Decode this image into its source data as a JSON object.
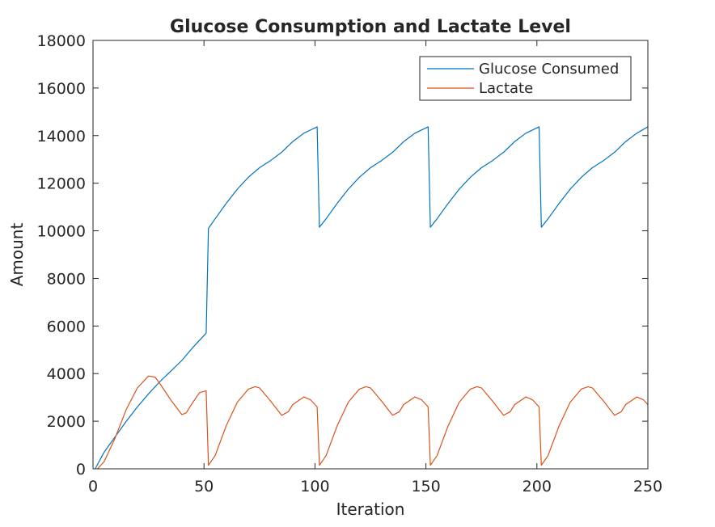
{
  "chart_data": {
    "type": "line",
    "title": "Glucose Consumption and Lactate Level",
    "xlabel": "Iteration",
    "ylabel": "Amount",
    "xlim": [
      0,
      250
    ],
    "ylim": [
      0,
      18000
    ],
    "xticks": [
      0,
      50,
      100,
      150,
      200,
      250
    ],
    "yticks": [
      0,
      2000,
      4000,
      6000,
      8000,
      10000,
      12000,
      14000,
      16000,
      18000
    ],
    "grid": false,
    "legend_location": "top-right",
    "series": [
      {
        "name": "Glucose Consumed",
        "color": "#0072BD",
        "points": [
          [
            1,
            0
          ],
          [
            5,
            700
          ],
          [
            10,
            1350
          ],
          [
            15,
            2000
          ],
          [
            20,
            2600
          ],
          [
            25,
            3150
          ],
          [
            30,
            3650
          ],
          [
            35,
            4100
          ],
          [
            40,
            4550
          ],
          [
            45,
            5100
          ],
          [
            51,
            5700
          ],
          [
            52,
            10100
          ],
          [
            55,
            10500
          ],
          [
            60,
            11150
          ],
          [
            65,
            11750
          ],
          [
            70,
            12250
          ],
          [
            75,
            12650
          ],
          [
            80,
            12950
          ],
          [
            85,
            13300
          ],
          [
            90,
            13750
          ],
          [
            95,
            14100
          ],
          [
            101,
            14370
          ],
          [
            102,
            10150
          ],
          [
            105,
            10500
          ],
          [
            110,
            11150
          ],
          [
            115,
            11750
          ],
          [
            120,
            12250
          ],
          [
            125,
            12650
          ],
          [
            130,
            12950
          ],
          [
            135,
            13300
          ],
          [
            140,
            13750
          ],
          [
            145,
            14100
          ],
          [
            151,
            14370
          ],
          [
            152,
            10150
          ],
          [
            155,
            10500
          ],
          [
            160,
            11150
          ],
          [
            165,
            11750
          ],
          [
            170,
            12250
          ],
          [
            175,
            12650
          ],
          [
            180,
            12950
          ],
          [
            185,
            13300
          ],
          [
            190,
            13750
          ],
          [
            195,
            14100
          ],
          [
            201,
            14370
          ],
          [
            202,
            10150
          ],
          [
            205,
            10500
          ],
          [
            210,
            11150
          ],
          [
            215,
            11750
          ],
          [
            220,
            12250
          ],
          [
            225,
            12650
          ],
          [
            230,
            12950
          ],
          [
            235,
            13300
          ],
          [
            240,
            13750
          ],
          [
            245,
            14100
          ],
          [
            250,
            14370
          ]
        ]
      },
      {
        "name": "Lactate",
        "color": "#D95319",
        "points": [
          [
            2,
            0
          ],
          [
            5,
            300
          ],
          [
            10,
            1300
          ],
          [
            15,
            2500
          ],
          [
            20,
            3400
          ],
          [
            25,
            3900
          ],
          [
            28,
            3850
          ],
          [
            30,
            3600
          ],
          [
            35,
            2900
          ],
          [
            40,
            2280
          ],
          [
            42,
            2350
          ],
          [
            45,
            2800
          ],
          [
            48,
            3200
          ],
          [
            51,
            3280
          ],
          [
            52,
            150
          ],
          [
            55,
            550
          ],
          [
            60,
            1800
          ],
          [
            65,
            2800
          ],
          [
            70,
            3350
          ],
          [
            73,
            3450
          ],
          [
            75,
            3400
          ],
          [
            80,
            2850
          ],
          [
            85,
            2250
          ],
          [
            88,
            2400
          ],
          [
            90,
            2700
          ],
          [
            95,
            3020
          ],
          [
            98,
            2900
          ],
          [
            101,
            2600
          ],
          [
            102,
            150
          ],
          [
            105,
            550
          ],
          [
            110,
            1800
          ],
          [
            115,
            2800
          ],
          [
            120,
            3350
          ],
          [
            123,
            3450
          ],
          [
            125,
            3400
          ],
          [
            130,
            2850
          ],
          [
            135,
            2250
          ],
          [
            138,
            2400
          ],
          [
            140,
            2700
          ],
          [
            145,
            3020
          ],
          [
            148,
            2900
          ],
          [
            151,
            2600
          ],
          [
            152,
            150
          ],
          [
            155,
            550
          ],
          [
            160,
            1800
          ],
          [
            165,
            2800
          ],
          [
            170,
            3350
          ],
          [
            173,
            3450
          ],
          [
            175,
            3400
          ],
          [
            180,
            2850
          ],
          [
            185,
            2250
          ],
          [
            188,
            2400
          ],
          [
            190,
            2700
          ],
          [
            195,
            3020
          ],
          [
            198,
            2900
          ],
          [
            201,
            2600
          ],
          [
            202,
            150
          ],
          [
            205,
            550
          ],
          [
            210,
            1800
          ],
          [
            215,
            2800
          ],
          [
            220,
            3350
          ],
          [
            223,
            3450
          ],
          [
            225,
            3400
          ],
          [
            230,
            2850
          ],
          [
            235,
            2250
          ],
          [
            238,
            2400
          ],
          [
            240,
            2700
          ],
          [
            245,
            3020
          ],
          [
            248,
            2900
          ],
          [
            250,
            2700
          ]
        ]
      }
    ]
  }
}
